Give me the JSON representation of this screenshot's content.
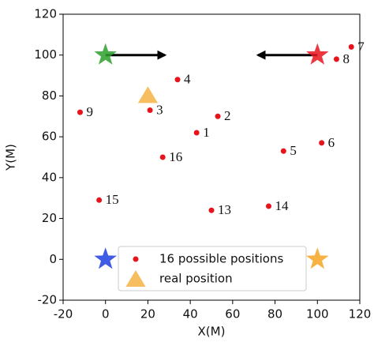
{
  "chart_data": {
    "type": "scatter",
    "xlabel": "X(M)",
    "ylabel": "Y(M)",
    "xlim": [
      -20,
      120
    ],
    "ylim": [
      -20,
      120
    ],
    "xticks": [
      -20,
      0,
      20,
      40,
      60,
      80,
      100,
      120
    ],
    "yticks": [
      -20,
      0,
      20,
      40,
      60,
      80,
      100,
      120
    ],
    "series": [
      {
        "name": "16 possible positions",
        "color": "#e8141c",
        "marker": "dot",
        "x": [
          43,
          53,
          21,
          34,
          84,
          102,
          116,
          109,
          -12,
          50,
          77,
          -3,
          27
        ],
        "y": [
          62,
          70,
          73,
          88,
          53,
          57,
          104,
          98,
          72,
          24,
          26,
          29,
          50
        ],
        "labels": [
          "1",
          "2",
          "3",
          "4",
          "5",
          "6",
          "7",
          "8",
          "9",
          "13",
          "14",
          "15",
          "16"
        ]
      },
      {
        "name": "real position",
        "color": "#f5b342",
        "marker": "triangle",
        "x": [
          20
        ],
        "y": [
          80
        ]
      }
    ],
    "stars": [
      {
        "x": 0,
        "y": 100,
        "color": "#2ca02c"
      },
      {
        "x": 100,
        "y": 100,
        "color": "#e8141c"
      },
      {
        "x": 0,
        "y": 0,
        "color": "#1f3fe0"
      },
      {
        "x": 100,
        "y": 0,
        "color": "#f5a623"
      }
    ],
    "arrows": [
      {
        "x": [
          0,
          28
        ],
        "y": [
          100,
          100
        ]
      },
      {
        "x": [
          100,
          72
        ],
        "y": [
          100,
          100
        ]
      }
    ],
    "legend": "lower center"
  }
}
